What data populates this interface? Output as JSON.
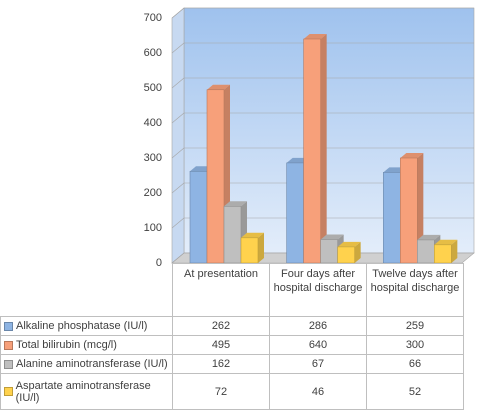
{
  "chart_data": {
    "type": "bar",
    "categories": [
      "At presentation",
      "Four days after hospital discharge",
      "Twelve days after hospital discharge"
    ],
    "series": [
      {
        "name": "Alkaline phosphatase (IU/l)",
        "color": "#8eb4e3",
        "values": [
          262,
          286,
          259
        ]
      },
      {
        "name": "Total bilirubin (mcg/l)",
        "color": "#f7a07a",
        "values": [
          495,
          640,
          300
        ]
      },
      {
        "name": "Alanine aminotransferase (IU/l)",
        "color": "#bfbfbf",
        "values": [
          162,
          67,
          66
        ]
      },
      {
        "name": "Aspartate aminotransferase (IU/l)",
        "color": "#ffd24d",
        "values": [
          72,
          46,
          52
        ]
      }
    ],
    "ylim": [
      0,
      700
    ],
    "yticks": [
      0,
      100,
      200,
      300,
      400,
      500,
      600,
      700
    ],
    "grid": true,
    "data_table": true
  }
}
